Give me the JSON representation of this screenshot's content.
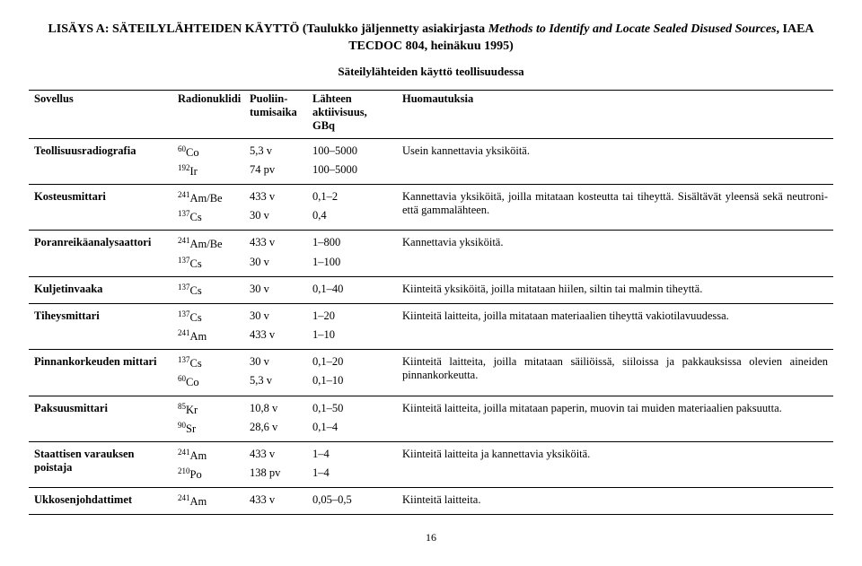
{
  "title_prefix": "LISÄYS A: SÄTEILYLÄHTEIDEN KÄYTTÖ (Taulukko jäljennetty asiakirjasta ",
  "title_italic": "Methods to Identify and Locate Sealed Disused Sources",
  "title_suffix": ", IAEA TECDOC 804, heinäkuu 1995)",
  "subtitle": "Säteilylähteiden käyttö teollisuudessa",
  "headers": {
    "c1": "Sovellus",
    "c2": "Radionuklidi",
    "c3": "Puoliin-tumisaika",
    "c3a": "Puoliin-",
    "c3b": "tumisaika",
    "c4": "Lähteen aktiivisuus, GBq",
    "c4a": "Lähteen",
    "c4b": "aktiivisuus, GBq",
    "c5": "Huomautuksia"
  },
  "rows": [
    {
      "app": "Teollisuusradiografia",
      "nuc_sup": "60",
      "nuc": "Co",
      "half": "5,3 v",
      "act": "100–5000",
      "rem": "Usein kannettavia yksiköitä.",
      "rowspan": 2,
      "first": true
    },
    {
      "nuc_sup": "192",
      "nuc": "Ir",
      "half": "74 pv",
      "act": "100–5000",
      "last": true
    },
    {
      "app": "Kosteusmittari",
      "nuc_sup": "241",
      "nuc": "Am/Be",
      "half": "433 v",
      "act": "0,1–2",
      "rem": "Kannettavia yksiköitä, joilla mitataan kosteutta tai tiheyttä. Sisältävät yleensä sekä neutroni- että gammalähteen.",
      "rowspan": 2,
      "first": true
    },
    {
      "nuc_sup": "137",
      "nuc": "Cs",
      "half": "30 v",
      "act": "0,4",
      "last": true
    },
    {
      "app": "Poranreikäanalysaattori",
      "nuc_sup": "241",
      "nuc": "Am/Be",
      "half": "433 v",
      "act": "1–800",
      "rem": "Kannettavia yksiköitä.",
      "rowspan": 2,
      "first": true
    },
    {
      "nuc_sup": "137",
      "nuc": "Cs",
      "half": "30 v",
      "act": "1–100",
      "last": true
    },
    {
      "app": "Kuljetinvaaka",
      "nuc_sup": "137",
      "nuc": "Cs",
      "half": "30 v",
      "act": "0,1–40",
      "rem": "Kiinteitä yksiköitä, joilla mitataan hiilen, siltin tai malmin tiheyttä.",
      "rowspan": 1,
      "first": true,
      "last": true
    },
    {
      "app": "Tiheysmittari",
      "nuc_sup": "137",
      "nuc": "Cs",
      "half": "30 v",
      "act": "1–20",
      "rem": "Kiinteitä laitteita, joilla mitataan materiaalien tiheyttä vakiotilavuudessa.",
      "rowspan": 2,
      "first": true
    },
    {
      "nuc_sup": "241",
      "nuc": "Am",
      "half": "433 v",
      "act": "1–10",
      "last": true
    },
    {
      "app": "Pinnankorkeuden mittari",
      "nuc_sup": "137",
      "nuc": "Cs",
      "half": "30 v",
      "act": "0,1–20",
      "rem": "Kiinteitä laitteita, joilla mitataan säiliöissä, siiloissa ja pakkauksissa olevien aineiden pinnankorkeutta.",
      "rowspan": 2,
      "first": true
    },
    {
      "nuc_sup": "60",
      "nuc": "Co",
      "half": "5,3 v",
      "act": "0,1–10",
      "last": true
    },
    {
      "app": "Paksuusmittari",
      "nuc_sup": "85",
      "nuc": "Kr",
      "half": "10,8 v",
      "act": "0,1–50",
      "rem": "Kiinteitä laitteita, joilla mitataan paperin, muovin tai muiden materiaalien paksuutta.",
      "rowspan": 2,
      "first": true
    },
    {
      "nuc_sup": "90",
      "nuc": "Sr",
      "half": "28,6 v",
      "act": "0,1–4",
      "last": true
    },
    {
      "app": "Staattisen varauksen poistaja",
      "nuc_sup": "241",
      "nuc": "Am",
      "half": "433 v",
      "act": "1–4",
      "rem": "Kiinteitä laitteita ja kannettavia yksiköitä.",
      "rowspan": 2,
      "first": true
    },
    {
      "nuc_sup": "210",
      "nuc": "Po",
      "half": "138 pv",
      "act": "1–4",
      "last": true
    },
    {
      "app": "Ukkosenjohdattimet",
      "nuc_sup": "241",
      "nuc": "Am",
      "half": "433 v",
      "act": "0,05–0,5",
      "rem": "Kiinteitä laitteita.",
      "rowspan": 1,
      "first": true,
      "last": true
    }
  ],
  "page_number": "16"
}
